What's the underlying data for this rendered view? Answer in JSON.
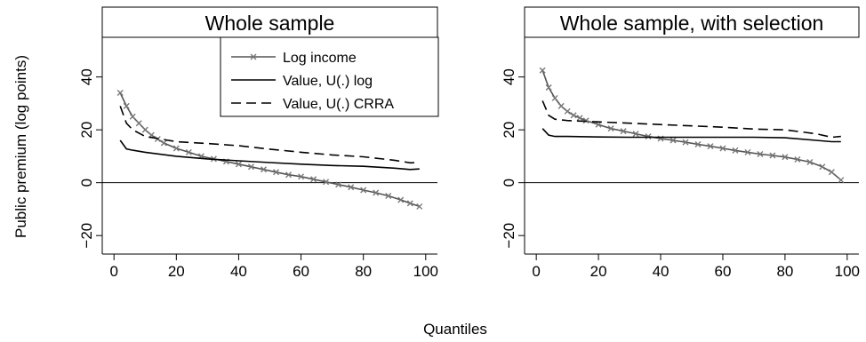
{
  "figure": {
    "ylabel": "Public premium (log points)",
    "xlabel": "Quantiles"
  },
  "legend": {
    "entries": [
      "Log income",
      "Value, U(.) log",
      "Value, U(.) CRRA"
    ]
  },
  "colors": {
    "log_income": "#555555",
    "value_log": "#000000",
    "value_crra": "#000000",
    "axes": "#000000"
  },
  "chart_data": [
    {
      "type": "line",
      "title": "Whole sample",
      "xlabel": "Quantiles",
      "ylabel": "Public premium (log points)",
      "xlim": [
        0,
        100
      ],
      "ylim": [
        -27,
        55
      ],
      "xticks": [
        0,
        20,
        40,
        60,
        80,
        100
      ],
      "yticks": [
        -20,
        0,
        20,
        40
      ],
      "hline": 0,
      "grid": false,
      "legend_position": "top-right",
      "series": [
        {
          "name": "Log income",
          "style": "line-x-markers",
          "x": [
            2,
            4,
            6,
            8,
            10,
            12,
            14,
            16,
            20,
            24,
            28,
            32,
            36,
            40,
            44,
            48,
            52,
            56,
            60,
            64,
            68,
            72,
            76,
            80,
            84,
            88,
            92,
            95,
            98
          ],
          "y": [
            34,
            29,
            25,
            22.5,
            20,
            18,
            16.5,
            15,
            13,
            11.5,
            10,
            9,
            8,
            7,
            6,
            5,
            4,
            3,
            2.3,
            1.3,
            0.3,
            -0.7,
            -1.7,
            -2.8,
            -3.8,
            -5,
            -6.5,
            -7.8,
            -9
          ]
        },
        {
          "name": "Value, U(.) log",
          "style": "solid",
          "x": [
            2,
            4,
            6,
            10,
            20,
            30,
            40,
            50,
            60,
            70,
            80,
            90,
            95,
            98
          ],
          "y": [
            16,
            12.8,
            12.3,
            11.5,
            10,
            9,
            8.3,
            7.6,
            7,
            6.5,
            6.2,
            5.5,
            5,
            5.2
          ]
        },
        {
          "name": "Value, U(.) CRRA",
          "style": "dashed",
          "x": [
            2,
            4,
            6,
            10,
            20,
            30,
            40,
            50,
            60,
            70,
            80,
            90,
            95,
            98
          ],
          "y": [
            29,
            22.5,
            20,
            17.5,
            15.5,
            14.8,
            14,
            12.7,
            11.5,
            10.5,
            9.8,
            8.5,
            7.5,
            7.6
          ]
        }
      ]
    },
    {
      "type": "line",
      "title": "Whole sample, with selection",
      "xlabel": "Quantiles",
      "ylabel": "Public premium (log points)",
      "xlim": [
        0,
        100
      ],
      "ylim": [
        -27,
        55
      ],
      "xticks": [
        0,
        20,
        40,
        60,
        80,
        100
      ],
      "yticks": [
        -20,
        0,
        20,
        40
      ],
      "hline": 0,
      "grid": false,
      "series": [
        {
          "name": "Log income",
          "style": "line-x-markers",
          "x": [
            2,
            4,
            6,
            8,
            10,
            12,
            14,
            16,
            20,
            24,
            28,
            32,
            36,
            40,
            44,
            48,
            52,
            56,
            60,
            64,
            68,
            72,
            76,
            80,
            84,
            88,
            92,
            95,
            98
          ],
          "y": [
            42.5,
            36,
            32,
            29,
            27,
            25.5,
            24.5,
            23.5,
            22,
            20.5,
            19.5,
            18.5,
            17.5,
            16.7,
            16,
            15.3,
            14.5,
            13.8,
            13,
            12.2,
            11.5,
            10.8,
            10.3,
            9.7,
            8.8,
            7.8,
            6,
            4,
            1
          ]
        },
        {
          "name": "Value, U(.) log",
          "style": "solid",
          "x": [
            2,
            4,
            6,
            10,
            20,
            30,
            40,
            50,
            60,
            70,
            80,
            90,
            95,
            98
          ],
          "y": [
            20.5,
            18,
            17.5,
            17.5,
            17.3,
            17.2,
            17.2,
            17.2,
            17.2,
            17.2,
            17,
            16,
            15.5,
            15.5
          ]
        },
        {
          "name": "Value, U(.) CRRA",
          "style": "dashed",
          "x": [
            2,
            4,
            6,
            10,
            20,
            30,
            40,
            50,
            60,
            70,
            80,
            90,
            95,
            98
          ],
          "y": [
            31,
            25.5,
            24,
            23.5,
            23,
            22.5,
            22,
            21.5,
            21,
            20.3,
            20,
            18.5,
            17.2,
            17.5
          ]
        }
      ]
    }
  ]
}
